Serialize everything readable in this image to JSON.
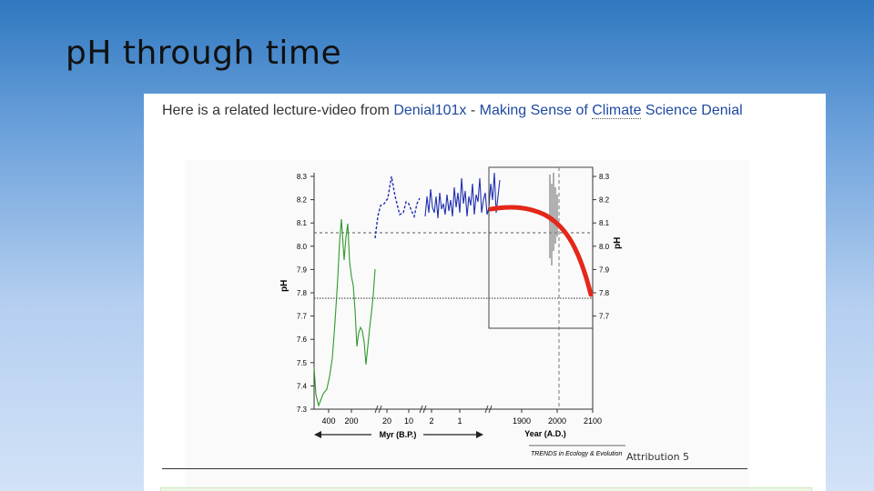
{
  "slide": {
    "title": "pH through time"
  },
  "panel": {
    "intro_text": "Here is a related lecture-video from ",
    "link1": "Denial101x",
    "separator": " - ",
    "link2_part1": "Making Sense of ",
    "link2_dotted": "Climate",
    "link2_part2": " Science Denial",
    "attribution": "Attribution 5"
  },
  "figure": {
    "left_axis_label": "pH",
    "right_axis_label": "pH",
    "ph_ticks": [
      "8.3",
      "8.2",
      "8.1",
      "8.0",
      "7.9",
      "7.8",
      "7.7",
      "7.6",
      "7.5",
      "7.4",
      "7.3"
    ],
    "right_ph_ticks": [
      "8.3",
      "8.2",
      "8.1",
      "8.0",
      "7.9",
      "7.8",
      "7.7"
    ],
    "myr_ticks": [
      "400",
      "200",
      "20",
      "10",
      "2",
      "1"
    ],
    "year_ticks": [
      "1900",
      "2000",
      "2100"
    ],
    "myr_label": "Myr (B.P.)",
    "year_label": "Year (A.D.)",
    "journal": "TRENDS in Ecology & Evolution",
    "colors": {
      "paleo_green": "#2e9a2e",
      "recent_blue": "#1f2fb0",
      "projection_red": "#e3281a",
      "observed_gray": "#888888"
    }
  }
}
